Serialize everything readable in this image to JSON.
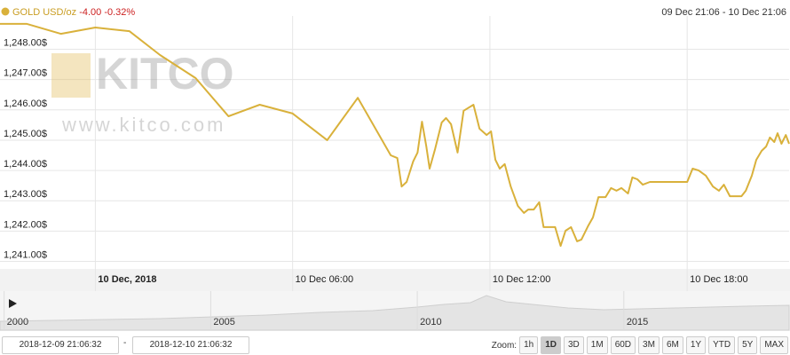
{
  "chart_data": {
    "type": "line",
    "title": "GOLD USD/oz",
    "change": "-4.00",
    "change_pct": "-0.32%",
    "subtitle": "09 Dec 21:06 - 10 Dec 21:06",
    "watermark": {
      "logo": "KITCO",
      "url": "www.kitco.com"
    },
    "color": "#d9b13b",
    "grid": true,
    "x": [
      "2018-12-09T21:06",
      "2018-12-09T21:55",
      "2018-12-09T22:57",
      "2018-12-10T00:00",
      "2018-12-10T01:02",
      "2018-12-10T01:58",
      "2018-12-10T03:03",
      "2018-12-10T04:03",
      "2018-12-10T05:00",
      "2018-12-10T06:00",
      "2018-12-10T07:03",
      "2018-12-10T07:59",
      "2018-12-10T08:59",
      "2018-12-10T09:11",
      "2018-12-10T09:19",
      "2018-12-10T09:28",
      "2018-12-10T09:40",
      "2018-12-10T09:48",
      "2018-12-10T09:56",
      "2018-12-10T10:04",
      "2018-12-10T10:10",
      "2018-12-10T10:20",
      "2018-12-10T10:32",
      "2018-12-10T10:40",
      "2018-12-10T10:49",
      "2018-12-10T11:01",
      "2018-12-10T11:12",
      "2018-12-10T11:30",
      "2018-12-10T11:41",
      "2018-12-10T11:54",
      "2018-12-10T12:02",
      "2018-12-10T12:10",
      "2018-12-10T12:18",
      "2018-12-10T12:27",
      "2018-12-10T12:38",
      "2018-12-10T12:51",
      "2018-12-10T13:02",
      "2018-12-10T13:10",
      "2018-12-10T13:20",
      "2018-12-10T13:30",
      "2018-12-10T13:38",
      "2018-12-10T13:59",
      "2018-12-10T14:09",
      "2018-12-10T14:18",
      "2018-12-10T14:28",
      "2018-12-10T14:39",
      "2018-12-10T14:47",
      "2018-12-10T14:59",
      "2018-12-10T15:08",
      "2018-12-10T15:18",
      "2018-12-10T15:31",
      "2018-12-10T15:41",
      "2018-12-10T15:51",
      "2018-12-10T16:00",
      "2018-12-10T16:12",
      "2018-12-10T16:20",
      "2018-12-10T16:29",
      "2018-12-10T16:39",
      "2018-12-10T16:52",
      "2018-12-10T18:00",
      "2018-12-10T18:10",
      "2018-12-10T18:21",
      "2018-12-10T18:34",
      "2018-12-10T18:47",
      "2018-12-10T18:58",
      "2018-12-10T19:07",
      "2018-12-10T19:18",
      "2018-12-10T19:39",
      "2018-12-10T19:47",
      "2018-12-10T19:58",
      "2018-12-10T20:06",
      "2018-12-10T20:16",
      "2018-12-10T20:24",
      "2018-12-10T20:31",
      "2018-12-10T20:39",
      "2018-12-10T20:45",
      "2018-12-10T20:52",
      "2018-12-10T21:00",
      "2018-12-10T21:06"
    ],
    "values": [
      1248.84,
      1248.84,
      1248.51,
      1248.72,
      1248.6,
      1247.81,
      1247.05,
      1245.79,
      1246.17,
      1245.88,
      1245.0,
      1246.4,
      1244.5,
      1244.41,
      1243.47,
      1243.62,
      1244.3,
      1244.59,
      1245.61,
      1244.79,
      1244.06,
      1244.71,
      1245.58,
      1245.73,
      1245.53,
      1244.59,
      1245.97,
      1246.17,
      1245.38,
      1245.17,
      1245.29,
      1244.35,
      1244.06,
      1244.21,
      1243.47,
      1242.83,
      1242.6,
      1242.71,
      1242.71,
      1242.95,
      1242.13,
      1242.13,
      1241.51,
      1242.01,
      1242.13,
      1241.66,
      1241.72,
      1242.16,
      1242.45,
      1243.12,
      1243.12,
      1243.42,
      1243.33,
      1243.42,
      1243.24,
      1243.77,
      1243.71,
      1243.53,
      1243.62,
      1243.62,
      1244.06,
      1244.0,
      1243.83,
      1243.47,
      1243.33,
      1243.53,
      1243.15,
      1243.15,
      1243.33,
      1243.83,
      1244.35,
      1244.65,
      1244.79,
      1245.09,
      1244.94,
      1245.23,
      1244.88,
      1245.17,
      1244.88
    ],
    "xlim": [
      "2018-12-09T21:06",
      "2018-12-10T21:06"
    ],
    "xticks": [
      {
        "value": "2018-12-10T00:00",
        "label": "10 Dec, 2018"
      },
      {
        "value": "2018-12-10T06:00",
        "label": "10 Dec 06:00"
      },
      {
        "value": "2018-12-10T12:00",
        "label": "10 Dec 12:00"
      },
      {
        "value": "2018-12-10T18:00",
        "label": "10 Dec 18:00"
      }
    ],
    "ylim": [
      1240.75,
      1249.1
    ],
    "yticks": [
      {
        "value": 1241,
        "label": "1,241.00$"
      },
      {
        "value": 1242,
        "label": "1,242.00$"
      },
      {
        "value": 1243,
        "label": "1,243.00$"
      },
      {
        "value": 1244,
        "label": "1,244.00$"
      },
      {
        "value": 1245,
        "label": "1,245.00$"
      },
      {
        "value": 1246,
        "label": "1,246.00$"
      },
      {
        "value": 1247,
        "label": "1,247.00$"
      },
      {
        "value": 1248,
        "label": "1,248.00$"
      }
    ],
    "navigator": {
      "xlim": [
        1999.9,
        2019.0
      ],
      "xticks": [
        2000,
        2005,
        2010,
        2015
      ]
    }
  },
  "range": {
    "from": "2018-12-09 21:06:32",
    "separator": "-",
    "to": "2018-12-10 21:06:32"
  },
  "zoom": {
    "label": "Zoom:",
    "buttons": [
      "1h",
      "1D",
      "3D",
      "1M",
      "60D",
      "3M",
      "6M",
      "1Y",
      "YTD",
      "5Y",
      "MAX"
    ],
    "selected": "1D"
  }
}
